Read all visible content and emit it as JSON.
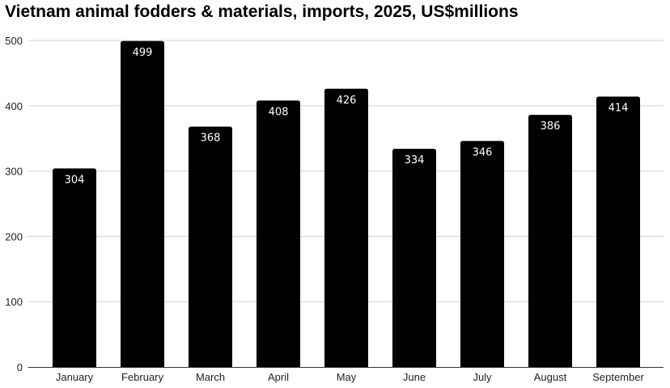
{
  "chart_data": {
    "type": "bar",
    "title": "Vietnam animal fodders & materials, imports, 2025, US$millions",
    "xlabel": "",
    "ylabel": "",
    "categories": [
      "January",
      "February",
      "March",
      "April",
      "May",
      "June",
      "July",
      "August",
      "September"
    ],
    "values": [
      304,
      499,
      368,
      408,
      426,
      334,
      346,
      386,
      414
    ],
    "ylim": [
      0,
      500
    ],
    "yticks": [
      0,
      100,
      200,
      300,
      400,
      500
    ],
    "grid": true,
    "legend": "none",
    "bar_color": "#000000",
    "label_color": "#ffffff",
    "grid_color": "#d0d0d0"
  }
}
